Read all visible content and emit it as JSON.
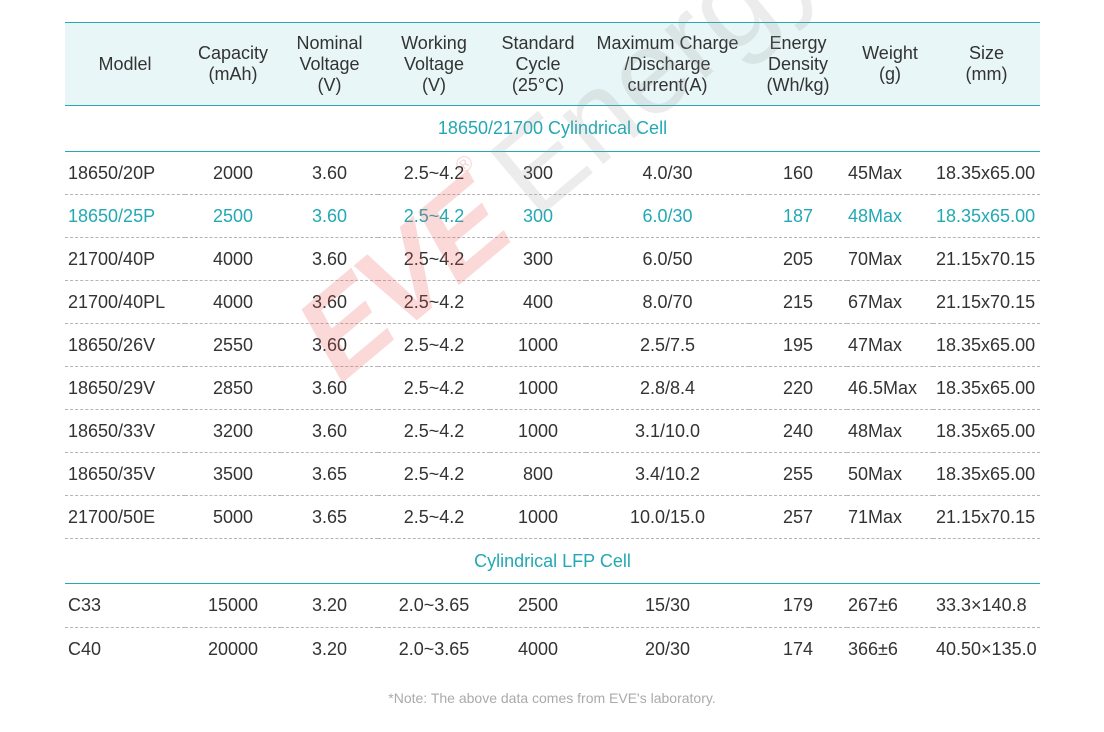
{
  "headers": [
    "Modlel",
    "Capacity\n(mAh)",
    "Nominal\nVoltage\n(V)",
    "Working\nVoltage\n(V)",
    "Standard\nCycle\n(25°C)",
    "Maximum Charge\n/Discharge\ncurrent(A)",
    "Energy\nDensity\n(Wh/kg)",
    "Weight\n(g)",
    "Size\n(mm)"
  ],
  "sections": [
    {
      "title": "18650/21700 Cylindrical Cell",
      "rows": [
        [
          "18650/20P",
          "2000",
          "3.60",
          "2.5~4.2",
          "300",
          "4.0/30",
          "160",
          "45Max",
          "18.35x65.00"
        ],
        [
          "18650/25P",
          "2500",
          "3.60",
          "2.5~4.2",
          "300",
          "6.0/30",
          "187",
          "48Max",
          "18.35x65.00"
        ],
        [
          "21700/40P",
          "4000",
          "3.60",
          "2.5~4.2",
          "300",
          "6.0/50",
          "205",
          "70Max",
          "21.15x70.15"
        ],
        [
          "21700/40PL",
          "4000",
          "3.60",
          "2.5~4.2",
          "400",
          "8.0/70",
          "215",
          "67Max",
          "21.15x70.15"
        ],
        [
          "18650/26V",
          "2550",
          "3.60",
          "2.5~4.2",
          "1000",
          "2.5/7.5",
          "195",
          "47Max",
          "18.35x65.00"
        ],
        [
          "18650/29V",
          "2850",
          "3.60",
          "2.5~4.2",
          "1000",
          "2.8/8.4",
          "220",
          "46.5Max",
          "18.35x65.00"
        ],
        [
          "18650/33V",
          "3200",
          "3.60",
          "2.5~4.2",
          "1000",
          "3.1/10.0",
          "240",
          "48Max",
          "18.35x65.00"
        ],
        [
          "18650/35V",
          "3500",
          "3.65",
          "2.5~4.2",
          "800",
          "3.4/10.2",
          "255",
          "50Max",
          "18.35x65.00"
        ],
        [
          "21700/50E",
          "5000",
          "3.65",
          "2.5~4.2",
          "1000",
          "10.0/15.0",
          "257",
          "71Max",
          "21.15x70.15"
        ]
      ]
    },
    {
      "title": "Cylindrical LFP Cell",
      "rows": [
        [
          "C33",
          "15000",
          "3.20",
          "2.0~3.65",
          "2500",
          "15/30",
          "179",
          "267±6",
          "33.3×140.8"
        ],
        [
          "C40",
          "20000",
          "3.20",
          "2.0~3.65",
          "4000",
          "20/30",
          "174",
          "366±6",
          "40.50×135.0"
        ]
      ]
    }
  ],
  "watermark": {
    "brand": "EVE",
    "word": "Energy",
    "mark": "®"
  },
  "note": "*Note: The above data comes from EVE's laboratory.",
  "colors": {
    "accent": "#22a9b3",
    "header_bg": "#e8f6f7",
    "watermark_red": "#ec5050"
  },
  "highlight_row": "18650/25P"
}
